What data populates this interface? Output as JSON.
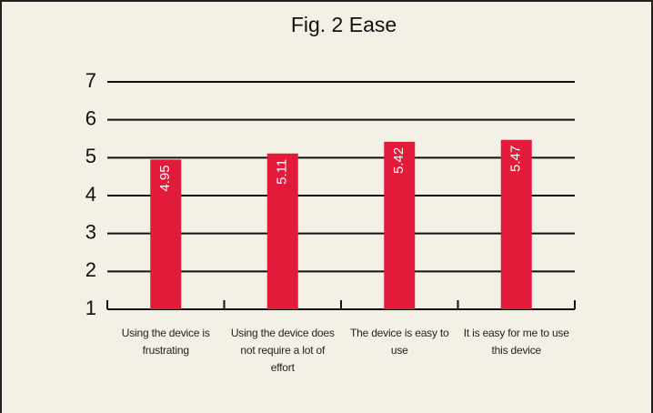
{
  "chart_data": {
    "type": "bar",
    "title": "Fig. 2 Ease",
    "categories": [
      "Using the device is frustrating",
      "Using the device does not require a lot of effort",
      "The device is easy to use",
      "It is easy for me to use this device"
    ],
    "values": [
      4.95,
      5.11,
      5.42,
      5.47
    ],
    "color": "#e31b3b",
    "ylim": [
      1,
      7
    ],
    "yticks": [
      1,
      2,
      3,
      4,
      5,
      6,
      7
    ],
    "grid": true
  }
}
